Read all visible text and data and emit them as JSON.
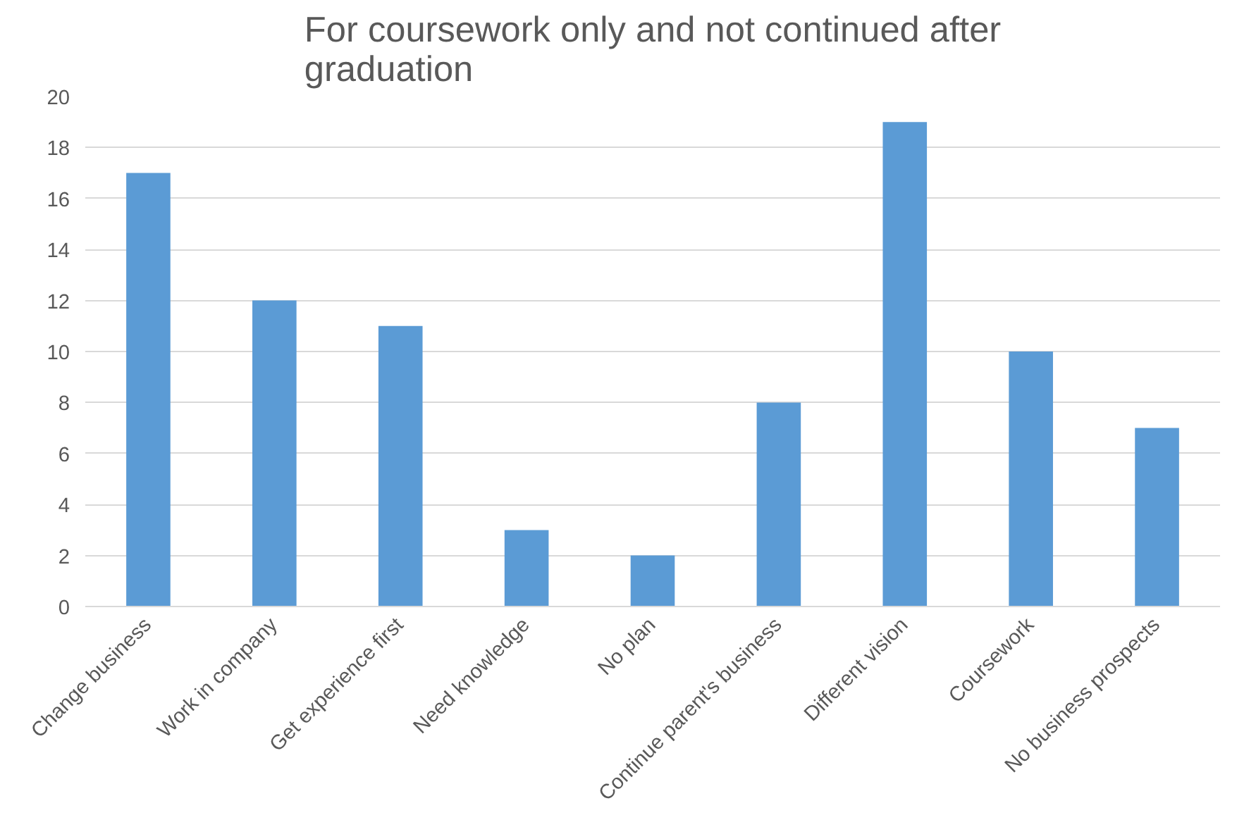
{
  "chart_data": {
    "type": "bar",
    "title": "For coursework only and not continued after\ngraduation",
    "categories": [
      "Change business",
      "Work in company",
      "Get experience first",
      "Need knowledge",
      "No plan",
      "Continue parent's business",
      "Different vision",
      "Coursework",
      "No business prospects"
    ],
    "values": [
      17,
      12,
      11,
      3,
      2,
      8,
      19,
      10,
      7
    ],
    "color": "#5b9bd5",
    "ylim": [
      0,
      20
    ],
    "yticks": [
      0,
      2,
      4,
      6,
      8,
      10,
      12,
      14,
      16,
      18,
      20
    ],
    "grid": "y"
  }
}
